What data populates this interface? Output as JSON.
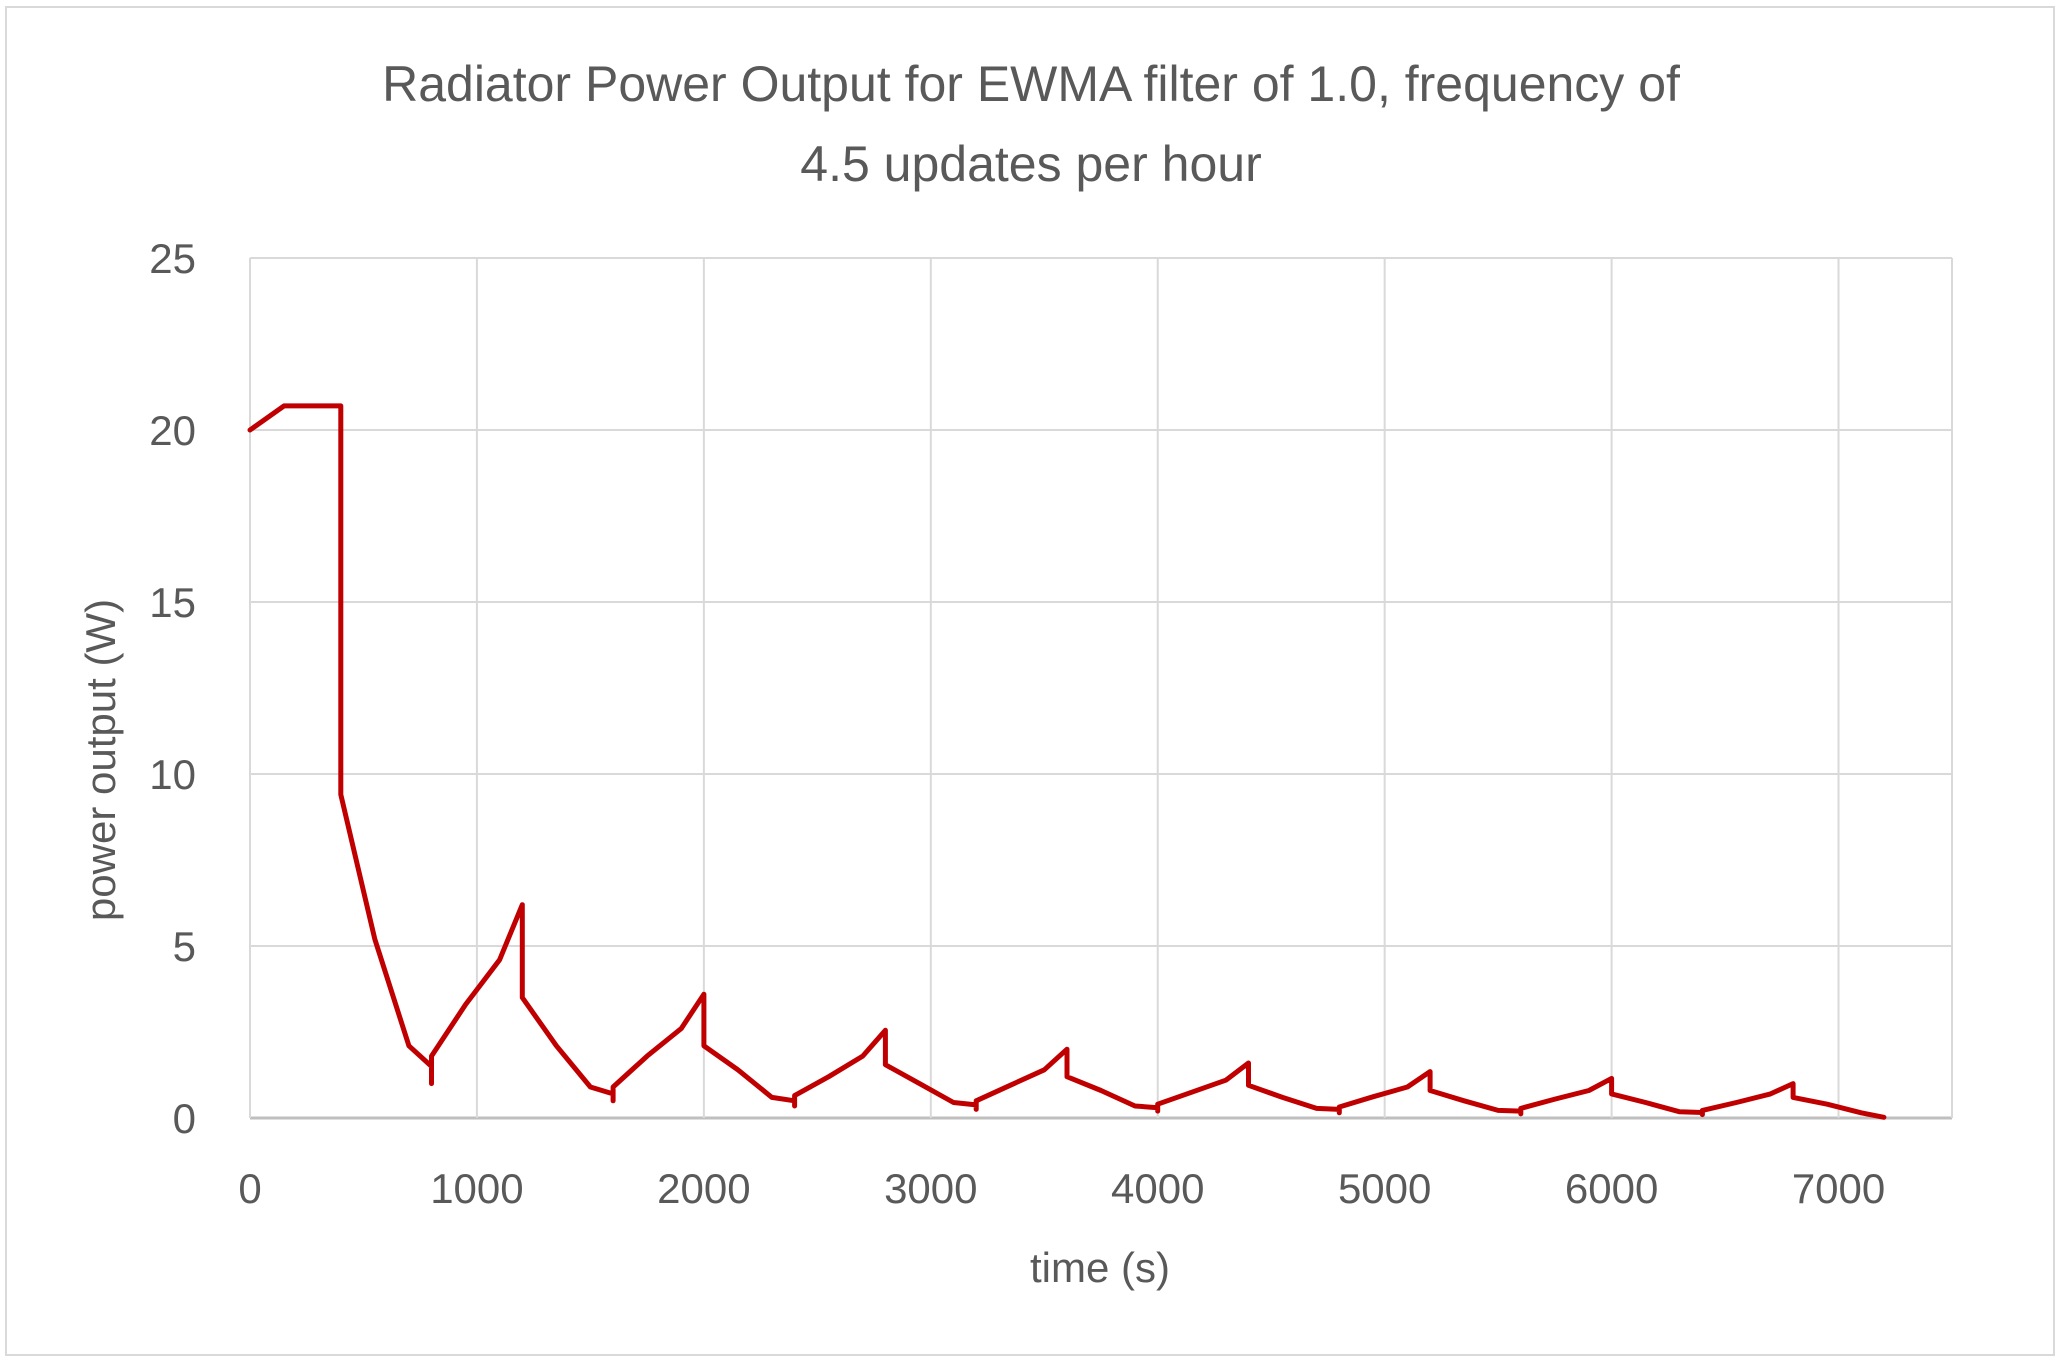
{
  "chart_data": {
    "type": "line",
    "title": "Radiator Power Output for EWMA filter of 1.0, frequency of 4.5 updates per hour",
    "title_lines": [
      "Radiator Power Output for EWMA filter of 1.0, frequency of",
      "4.5 updates per hour"
    ],
    "xlabel": "time (s)",
    "ylabel": "power output (W)",
    "xlim": [
      0,
      7500
    ],
    "ylim": [
      0,
      25
    ],
    "xticks": [
      0,
      1000,
      2000,
      3000,
      4000,
      5000,
      6000,
      7000
    ],
    "yticks": [
      0,
      5,
      10,
      15,
      20,
      25
    ],
    "grid": true,
    "legend": "none",
    "line_color": "#c00000",
    "series": [
      {
        "values": [
          [
            0,
            20.0
          ],
          [
            150,
            20.7
          ],
          [
            400,
            20.7
          ],
          [
            400,
            9.4
          ],
          [
            550,
            5.2
          ],
          [
            700,
            2.1
          ],
          [
            800,
            1.5
          ],
          [
            800,
            1.0
          ],
          [
            800,
            1.8
          ],
          [
            950,
            3.3
          ],
          [
            1100,
            4.6
          ],
          [
            1200,
            6.2
          ],
          [
            1200,
            3.5
          ],
          [
            1350,
            2.1
          ],
          [
            1500,
            0.9
          ],
          [
            1600,
            0.7
          ],
          [
            1600,
            0.5
          ],
          [
            1600,
            0.9
          ],
          [
            1750,
            1.8
          ],
          [
            1900,
            2.6
          ],
          [
            2000,
            3.6
          ],
          [
            2000,
            2.1
          ],
          [
            2150,
            1.4
          ],
          [
            2300,
            0.6
          ],
          [
            2400,
            0.5
          ],
          [
            2400,
            0.35
          ],
          [
            2400,
            0.65
          ],
          [
            2550,
            1.2
          ],
          [
            2700,
            1.8
          ],
          [
            2800,
            2.55
          ],
          [
            2800,
            1.55
          ],
          [
            2950,
            1.0
          ],
          [
            3100,
            0.45
          ],
          [
            3200,
            0.38
          ],
          [
            3200,
            0.25
          ],
          [
            3200,
            0.5
          ],
          [
            3350,
            0.95
          ],
          [
            3500,
            1.4
          ],
          [
            3600,
            2.0
          ],
          [
            3600,
            1.2
          ],
          [
            3750,
            0.8
          ],
          [
            3900,
            0.35
          ],
          [
            4000,
            0.3
          ],
          [
            4000,
            0.2
          ],
          [
            4000,
            0.4
          ],
          [
            4150,
            0.75
          ],
          [
            4300,
            1.1
          ],
          [
            4400,
            1.6
          ],
          [
            4400,
            0.95
          ],
          [
            4550,
            0.6
          ],
          [
            4700,
            0.28
          ],
          [
            4800,
            0.25
          ],
          [
            4800,
            0.15
          ],
          [
            4800,
            0.32
          ],
          [
            4950,
            0.62
          ],
          [
            5100,
            0.9
          ],
          [
            5200,
            1.35
          ],
          [
            5200,
            0.8
          ],
          [
            5350,
            0.5
          ],
          [
            5500,
            0.22
          ],
          [
            5600,
            0.2
          ],
          [
            5600,
            0.12
          ],
          [
            5600,
            0.28
          ],
          [
            5750,
            0.55
          ],
          [
            5900,
            0.8
          ],
          [
            6000,
            1.15
          ],
          [
            6000,
            0.7
          ],
          [
            6150,
            0.45
          ],
          [
            6300,
            0.18
          ],
          [
            6400,
            0.16
          ],
          [
            6400,
            0.1
          ],
          [
            6400,
            0.22
          ],
          [
            6550,
            0.45
          ],
          [
            6700,
            0.7
          ],
          [
            6800,
            1.0
          ],
          [
            6800,
            0.6
          ],
          [
            6950,
            0.4
          ],
          [
            7100,
            0.15
          ],
          [
            7200,
            0.02
          ]
        ]
      }
    ]
  }
}
